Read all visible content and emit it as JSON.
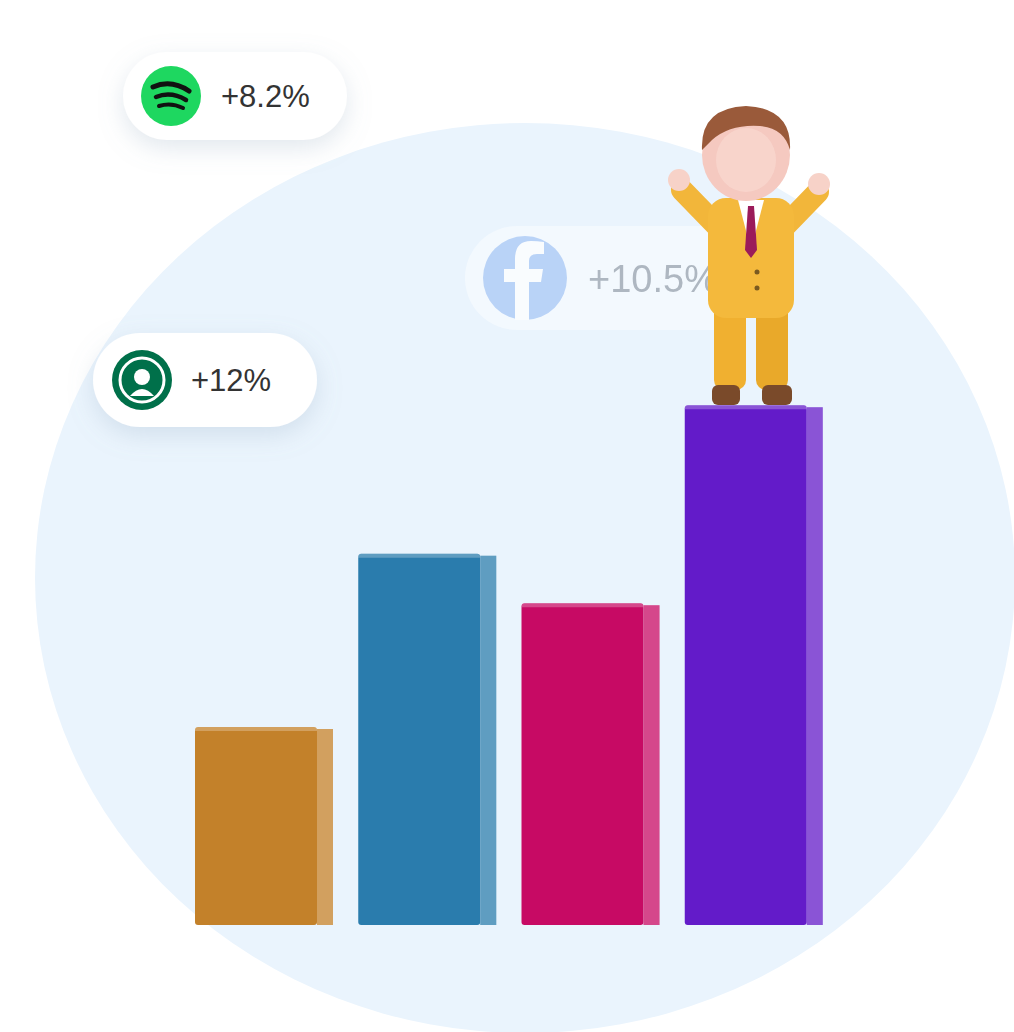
{
  "chart_data": {
    "type": "bar",
    "categories": [
      null,
      null,
      null,
      null
    ],
    "values": [
      24,
      45,
      39,
      63
    ],
    "colors": [
      "#c3812a",
      "#2a7cad",
      "#c70a64",
      "#631bc9"
    ],
    "ylim": [
      0,
      100
    ],
    "yticks": [
      0,
      100
    ],
    "grid": false,
    "tick_labels": false,
    "annotations": [
      {
        "text": "+8.2%"
      },
      {
        "text": "+10.5%"
      },
      {
        "text": "+12%"
      }
    ]
  }
}
